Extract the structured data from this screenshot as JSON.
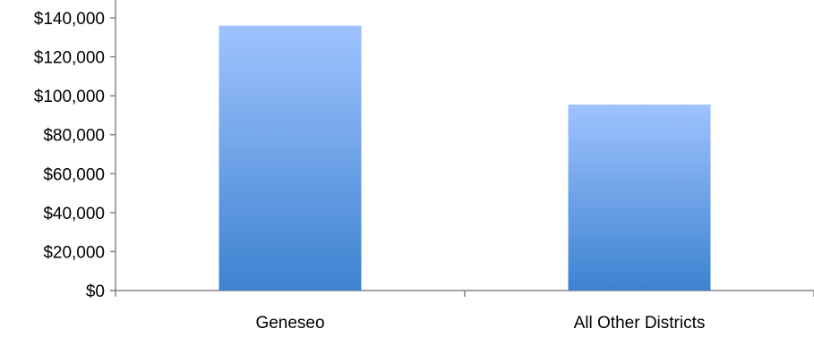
{
  "chart_data": {
    "type": "bar",
    "title": "",
    "xlabel": "",
    "ylabel": "",
    "categories": [
      "Geneseo",
      "All Other Districts"
    ],
    "series": [
      {
        "values": [
          136000,
          95500
        ]
      }
    ],
    "ylim": [
      0,
      140000
    ],
    "y_ticks": [
      0,
      20000,
      40000,
      60000,
      80000,
      100000,
      120000,
      140000
    ],
    "y_tick_labels": [
      "$0",
      "$20,000",
      "$40,000",
      "$60,000",
      "$80,000",
      "$100,000",
      "$120,000",
      "$140,000"
    ],
    "grid": false,
    "legend": "none",
    "colors": {
      "bar_top": "#9fc3ff",
      "bar_bottom": "#3d82d0",
      "axis": "#868686"
    }
  }
}
